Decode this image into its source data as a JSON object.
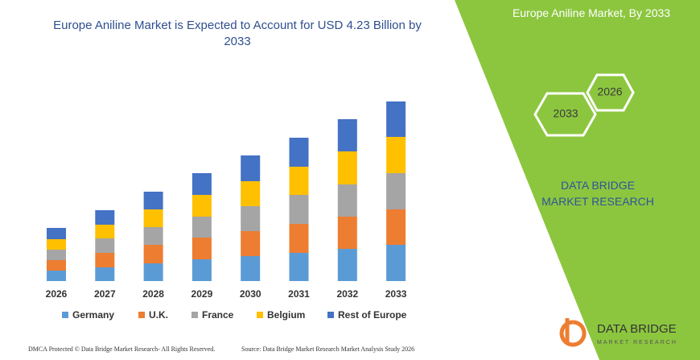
{
  "chart_data": {
    "type": "stacked_bar",
    "title": "Europe Aniline Market is Expected to Account for USD 4.23 Billion by 2033",
    "categories": [
      "2026",
      "2027",
      "2028",
      "2029",
      "2030",
      "2031",
      "2032",
      "2033"
    ],
    "series": [
      {
        "name": "Germany",
        "color": "#5b9bd5",
        "values": [
          13,
          17,
          22,
          27,
          31,
          35,
          40,
          45
        ]
      },
      {
        "name": "U.K.",
        "color": "#ed7d31",
        "values": [
          13,
          18,
          23,
          27,
          31,
          36,
          40,
          44
        ]
      },
      {
        "name": "France",
        "color": "#a5a5a5",
        "values": [
          13,
          18,
          22,
          26,
          31,
          36,
          40,
          45
        ]
      },
      {
        "name": "Belgium",
        "color": "#ffc000",
        "values": [
          13,
          17,
          22,
          27,
          31,
          35,
          41,
          45
        ]
      },
      {
        "name": "Rest of Europe",
        "color": "#4472c4",
        "values": [
          14,
          18,
          22,
          27,
          32,
          36,
          40,
          44
        ]
      }
    ]
  },
  "panel": {
    "title": "Europe Aniline Market, By 2033",
    "hexagons": [
      "2026",
      "2033"
    ],
    "brand": "DATA BRIDGE MARKET RESEARCH"
  },
  "logo": {
    "name": "DATA BRIDGE",
    "tagline": "MARKET RESEARCH"
  },
  "footer": {
    "left": "DMCA Protected © Data Bridge Market Research- All Rights Reserved.",
    "right": "Source: Data Bridge Market Research Market Analysis Study 2026"
  }
}
